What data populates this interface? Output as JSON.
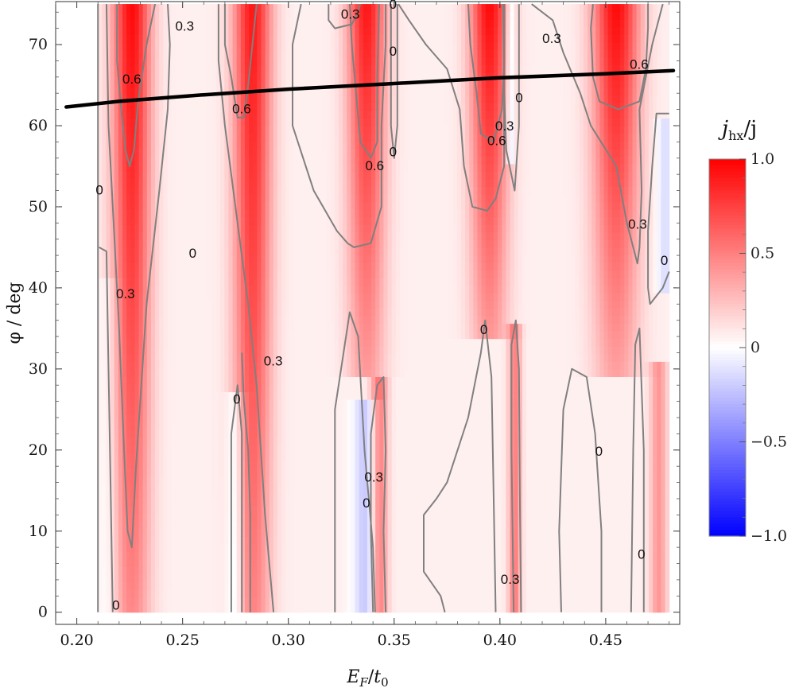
{
  "chart_data": {
    "type": "heatmap",
    "xlabel_main": "E",
    "xlabel_sub1": "F",
    "xlabel_sep": "/",
    "xlabel_main2": "t",
    "xlabel_sub2": "0",
    "ylabel": "φ / deg",
    "xlim": [
      0.19,
      0.485
    ],
    "ylim": [
      -1.5,
      75.3
    ],
    "data_x_range": [
      0.21,
      0.48
    ],
    "data_y_range": [
      0,
      75
    ],
    "x_ticks": [
      {
        "value": 0.2,
        "label": "0.20"
      },
      {
        "value": 0.25,
        "label": "0.25"
      },
      {
        "value": 0.3,
        "label": "0.30"
      },
      {
        "value": 0.35,
        "label": "0.35"
      },
      {
        "value": 0.4,
        "label": "0.40"
      },
      {
        "value": 0.45,
        "label": "0.45"
      }
    ],
    "y_ticks": [
      {
        "value": 0,
        "label": "0"
      },
      {
        "value": 10,
        "label": "10"
      },
      {
        "value": 20,
        "label": "20"
      },
      {
        "value": 30,
        "label": "30"
      },
      {
        "value": 40,
        "label": "40"
      },
      {
        "value": 50,
        "label": "50"
      },
      {
        "value": 60,
        "label": "60"
      },
      {
        "value": 70,
        "label": "70"
      }
    ],
    "colorbar": {
      "title_main": "j",
      "title_sub": "hx",
      "title_rest": "/j",
      "range": [
        -1.0,
        1.0
      ],
      "ticks": [
        {
          "value": 1.0,
          "label": "1.0"
        },
        {
          "value": 0.5,
          "label": "0.5"
        },
        {
          "value": 0,
          "label": "0"
        },
        {
          "value": -0.5,
          "label": "−0.5"
        },
        {
          "value": -1.0,
          "label": "−1.0"
        }
      ],
      "colors": {
        "positive": "#ff0000",
        "zero": "#ffffff",
        "negative": "#0000ff"
      }
    },
    "field_bands": [
      {
        "x": 0.226,
        "amp": 0.9,
        "width": 0.009,
        "y_top": 75,
        "y_bottom": 0,
        "decay": 0.55
      },
      {
        "x": 0.283,
        "amp": 0.85,
        "width": 0.009,
        "y_top": 75,
        "y_bottom": 0,
        "decay": 0.5
      },
      {
        "x": 0.337,
        "amp": 0.85,
        "width": 0.009,
        "y_top": 75,
        "y_bottom": 30,
        "decay": 0.6
      },
      {
        "x": 0.343,
        "amp": 0.5,
        "width": 0.004,
        "y_top": 28,
        "y_bottom": 0,
        "decay": 0.0
      },
      {
        "x": 0.395,
        "amp": 0.9,
        "width": 0.009,
        "y_top": 75,
        "y_bottom": 35,
        "decay": 0.6
      },
      {
        "x": 0.407,
        "amp": 0.45,
        "width": 0.003,
        "y_top": 35,
        "y_bottom": 0,
        "decay": 0.0
      },
      {
        "x": 0.455,
        "amp": 0.9,
        "width": 0.011,
        "y_top": 75,
        "y_bottom": 30,
        "decay": 0.65
      },
      {
        "x": 0.475,
        "amp": 0.35,
        "width": 0.004,
        "y_top": 30,
        "y_bottom": 0,
        "decay": 0.0
      },
      {
        "x": 0.275,
        "amp": -0.25,
        "width": 0.004,
        "y_top": 26,
        "y_bottom": 0,
        "decay": 0.0
      },
      {
        "x": 0.337,
        "amp": -0.3,
        "width": 0.006,
        "y_top": 25,
        "y_bottom": 0,
        "decay": 0.0
      },
      {
        "x": 0.405,
        "amp": -0.3,
        "width": 0.002,
        "y_top": 75,
        "y_bottom": 56,
        "decay": 0.0
      },
      {
        "x": 0.478,
        "amp": -0.2,
        "width": 0.004,
        "y_top": 60,
        "y_bottom": 40,
        "decay": 0.0
      },
      {
        "x": 0.215,
        "amp": -0.1,
        "width": 0.005,
        "y_top": 40,
        "y_bottom": 0,
        "decay": 0.0
      }
    ],
    "contours": [
      {
        "level": "0",
        "points": [
          [
            0.21,
            75
          ],
          [
            0.21,
            0
          ]
        ]
      },
      {
        "level": "0",
        "points": [
          [
            0.2105,
            45
          ],
          [
            0.214,
            44.5
          ],
          [
            0.215,
            30
          ],
          [
            0.216,
            15
          ],
          [
            0.217,
            0
          ]
        ]
      },
      {
        "level": "0",
        "points": [
          [
            0.273,
            0
          ],
          [
            0.273,
            22
          ],
          [
            0.276,
            28
          ],
          [
            0.278,
            22
          ],
          [
            0.278,
            0
          ]
        ]
      },
      {
        "level": "0",
        "points": [
          [
            0.322,
            0
          ],
          [
            0.322,
            25
          ],
          [
            0.329,
            37
          ],
          [
            0.333,
            34
          ],
          [
            0.336,
            20
          ],
          [
            0.34,
            8
          ],
          [
            0.341,
            0
          ]
        ]
      },
      {
        "level": "0",
        "points": [
          [
            0.3485,
            75
          ],
          [
            0.3485,
            60
          ],
          [
            0.35,
            56
          ],
          [
            0.3515,
            60
          ],
          [
            0.3515,
            75
          ]
        ]
      },
      {
        "level": "0",
        "points": [
          [
            0.374,
            0
          ],
          [
            0.372,
            2
          ],
          [
            0.364,
            5
          ],
          [
            0.364,
            12
          ],
          [
            0.37,
            14
          ],
          [
            0.375,
            16
          ],
          [
            0.385,
            24
          ],
          [
            0.391,
            32
          ],
          [
            0.393,
            36
          ],
          [
            0.396,
            29
          ],
          [
            0.397,
            15
          ],
          [
            0.398,
            0
          ]
        ]
      },
      {
        "level": "0",
        "points": [
          [
            0.4015,
            75
          ],
          [
            0.402,
            64
          ],
          [
            0.403,
            57
          ],
          [
            0.407,
            52
          ],
          [
            0.409,
            60
          ],
          [
            0.409,
            75
          ]
        ]
      },
      {
        "level": "0",
        "points": [
          [
            0.429,
            0
          ],
          [
            0.428,
            10
          ],
          [
            0.43,
            25
          ],
          [
            0.434,
            30
          ],
          [
            0.441,
            29
          ],
          [
            0.445,
            22
          ],
          [
            0.448,
            10
          ],
          [
            0.448,
            0
          ]
        ]
      },
      {
        "level": "0",
        "points": [
          [
            0.462,
            0
          ],
          [
            0.463,
            20
          ],
          [
            0.464,
            33
          ],
          [
            0.466,
            35
          ],
          [
            0.468,
            20
          ],
          [
            0.468,
            0
          ]
        ]
      },
      {
        "level": "0",
        "points": [
          [
            0.48,
            61.5
          ],
          [
            0.474,
            61.5
          ],
          [
            0.472,
            55
          ],
          [
            0.47,
            47
          ],
          [
            0.47,
            40
          ],
          [
            0.471,
            38
          ],
          [
            0.477,
            40
          ],
          [
            0.48,
            42
          ]
        ]
      },
      {
        "level": "0.3",
        "points": [
          [
            0.214,
            75
          ],
          [
            0.215,
            60
          ],
          [
            0.218,
            45
          ],
          [
            0.22,
            35
          ],
          [
            0.222,
            22
          ],
          [
            0.224,
            10
          ],
          [
            0.226,
            8
          ],
          [
            0.228,
            18
          ],
          [
            0.233,
            38
          ],
          [
            0.239,
            52
          ],
          [
            0.243,
            62
          ],
          [
            0.244,
            70
          ],
          [
            0.243,
            75
          ]
        ]
      },
      {
        "level": "0.3",
        "points": [
          [
            0.267,
            75
          ],
          [
            0.267,
            68
          ],
          [
            0.27,
            60
          ],
          [
            0.276,
            48
          ],
          [
            0.281,
            38
          ],
          [
            0.285,
            28
          ],
          [
            0.289,
            12
          ],
          [
            0.293,
            0
          ]
        ]
      },
      {
        "level": "0.3",
        "points": [
          [
            0.282,
            0
          ],
          [
            0.282,
            12
          ],
          [
            0.281,
            20
          ],
          [
            0.279,
            26
          ],
          [
            0.278,
            32
          ]
        ]
      },
      {
        "level": "0.3",
        "points": [
          [
            0.306,
            75
          ],
          [
            0.302,
            70
          ],
          [
            0.302,
            60
          ],
          [
            0.312,
            52
          ],
          [
            0.323,
            47
          ],
          [
            0.328,
            45.5
          ],
          [
            0.331,
            45
          ],
          [
            0.339,
            45.5
          ],
          [
            0.344,
            50
          ],
          [
            0.344,
            60
          ],
          [
            0.346,
            70
          ],
          [
            0.346,
            75
          ]
        ]
      },
      {
        "level": "0.3",
        "points": [
          [
            0.34,
            0
          ],
          [
            0.339,
            10
          ],
          [
            0.339,
            22
          ],
          [
            0.342,
            28
          ],
          [
            0.345,
            29
          ],
          [
            0.346,
            20
          ],
          [
            0.345,
            10
          ],
          [
            0.346,
            0
          ]
        ]
      },
      {
        "level": "0.3",
        "points": [
          [
            0.319,
            75
          ],
          [
            0.319,
            73
          ],
          [
            0.322,
            72
          ],
          [
            0.33,
            72.5
          ],
          [
            0.333,
            74
          ],
          [
            0.334,
            75
          ]
        ]
      },
      {
        "level": "0.3",
        "points": [
          [
            0.352,
            75
          ],
          [
            0.357,
            73
          ],
          [
            0.365,
            70
          ],
          [
            0.375,
            67
          ],
          [
            0.381,
            62
          ],
          [
            0.383,
            55
          ],
          [
            0.387,
            50
          ],
          [
            0.394,
            49.5
          ],
          [
            0.398,
            51
          ],
          [
            0.402,
            55
          ],
          [
            0.402,
            65
          ],
          [
            0.402,
            75
          ]
        ]
      },
      {
        "level": "0.3",
        "points": [
          [
            0.4065,
            0
          ],
          [
            0.4055,
            20
          ],
          [
            0.4055,
            33
          ],
          [
            0.4075,
            36
          ],
          [
            0.409,
            30
          ],
          [
            0.4095,
            12
          ],
          [
            0.41,
            0
          ]
        ]
      },
      {
        "level": "0.3",
        "points": [
          [
            0.415,
            75
          ],
          [
            0.425,
            73
          ],
          [
            0.43,
            69
          ],
          [
            0.438,
            64
          ],
          [
            0.443,
            60
          ],
          [
            0.455,
            55
          ],
          [
            0.46,
            48
          ],
          [
            0.465,
            43
          ],
          [
            0.466,
            45
          ],
          [
            0.467,
            52
          ],
          [
            0.466,
            62
          ],
          [
            0.472,
            70
          ],
          [
            0.477,
            75
          ]
        ]
      },
      {
        "level": "0.6",
        "points": [
          [
            0.219,
            75
          ],
          [
            0.219,
            68
          ],
          [
            0.221,
            62
          ],
          [
            0.223,
            57
          ],
          [
            0.225,
            55
          ],
          [
            0.227,
            57
          ],
          [
            0.229,
            63
          ],
          [
            0.233,
            70
          ],
          [
            0.237,
            75
          ]
        ]
      },
      {
        "level": "0.6",
        "points": [
          [
            0.27,
            75
          ],
          [
            0.27,
            70
          ],
          [
            0.273,
            66
          ],
          [
            0.276,
            61
          ],
          [
            0.279,
            61
          ],
          [
            0.281,
            65
          ],
          [
            0.283,
            70
          ],
          [
            0.285,
            75
          ]
        ]
      },
      {
        "level": "0.6",
        "points": [
          [
            0.329,
            75
          ],
          [
            0.33,
            70
          ],
          [
            0.332,
            64
          ],
          [
            0.334,
            58
          ],
          [
            0.339,
            56
          ],
          [
            0.342,
            58
          ],
          [
            0.342,
            66
          ],
          [
            0.343,
            75
          ]
        ]
      },
      {
        "level": "0.6",
        "points": [
          [
            0.385,
            75
          ],
          [
            0.386,
            70
          ],
          [
            0.389,
            64
          ],
          [
            0.391,
            59
          ],
          [
            0.397,
            58
          ],
          [
            0.401,
            62
          ],
          [
            0.402,
            68
          ],
          [
            0.402,
            75
          ]
        ]
      },
      {
        "level": "0.6",
        "points": [
          [
            0.444,
            75
          ],
          [
            0.443,
            72
          ],
          [
            0.444,
            66
          ],
          [
            0.447,
            63
          ],
          [
            0.456,
            62
          ],
          [
            0.466,
            63
          ],
          [
            0.469,
            67
          ],
          [
            0.47,
            72
          ],
          [
            0.47,
            75
          ]
        ]
      }
    ],
    "contour_labels": [
      {
        "text": "0.6",
        "x": 0.226,
        "y": 65.8
      },
      {
        "text": "0.3",
        "x": 0.251,
        "y": 72.3
      },
      {
        "text": "0.3",
        "x": 0.3293,
        "y": 73.8
      },
      {
        "text": "0",
        "x": 0.3495,
        "y": 75
      },
      {
        "text": "0",
        "x": 0.3495,
        "y": 69.2
      },
      {
        "text": "0.3",
        "x": 0.4245,
        "y": 70.8
      },
      {
        "text": "0.6",
        "x": 0.4658,
        "y": 67.6
      },
      {
        "text": "0.6",
        "x": 0.2779,
        "y": 62.1
      },
      {
        "text": "0",
        "x": 0.4091,
        "y": 63.5
      },
      {
        "text": "0.3",
        "x": 0.4022,
        "y": 60.0
      },
      {
        "text": "0.6",
        "x": 0.3985,
        "y": 58.2
      },
      {
        "text": "0",
        "x": 0.3495,
        "y": 56.8
      },
      {
        "text": "0.6",
        "x": 0.3408,
        "y": 55.1
      },
      {
        "text": "0",
        "x": 0.2107,
        "y": 52.1
      },
      {
        "text": "0",
        "x": 0.2548,
        "y": 44.3
      },
      {
        "text": "0.3",
        "x": 0.223,
        "y": 39.3
      },
      {
        "text": "0",
        "x": 0.4777,
        "y": 43.4
      },
      {
        "text": "0.3",
        "x": 0.4651,
        "y": 47.9
      },
      {
        "text": "0",
        "x": 0.3924,
        "y": 34.9
      },
      {
        "text": "0.3",
        "x": 0.2928,
        "y": 31.0
      },
      {
        "text": "0",
        "x": 0.2756,
        "y": 26.3
      },
      {
        "text": "0",
        "x": 0.4468,
        "y": 19.9
      },
      {
        "text": "0.3",
        "x": 0.3404,
        "y": 16.7
      },
      {
        "text": "0",
        "x": 0.3369,
        "y": 13.5
      },
      {
        "text": "0.3",
        "x": 0.4048,
        "y": 4.1
      },
      {
        "text": "0",
        "x": 0.4669,
        "y": 7.2
      },
      {
        "text": "0",
        "x": 0.2185,
        "y": 0.9
      }
    ],
    "overlay_line": {
      "label": "",
      "points": [
        [
          0.195,
          62.3
        ],
        [
          0.22,
          63.0
        ],
        [
          0.26,
          63.8
        ],
        [
          0.3,
          64.5
        ],
        [
          0.35,
          65.2
        ],
        [
          0.4,
          65.9
        ],
        [
          0.45,
          66.4
        ],
        [
          0.482,
          66.8
        ]
      ]
    }
  }
}
